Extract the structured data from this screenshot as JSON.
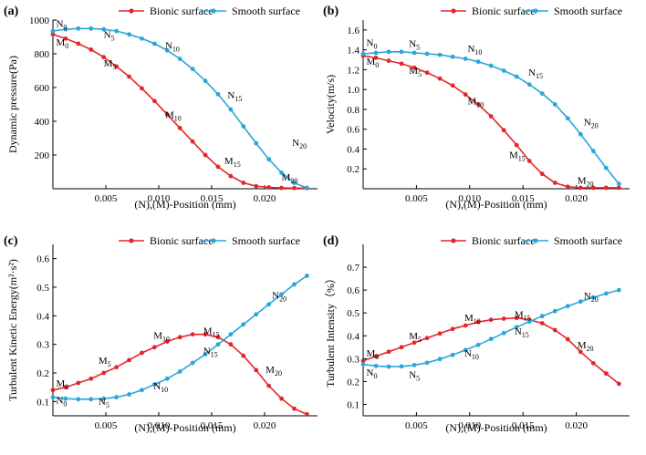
{
  "colors": {
    "bionic": "#e3262b",
    "smooth": "#2aa6d9",
    "axis": "#000000"
  },
  "chart_data": [
    {
      "type": "line",
      "panel": "(a)",
      "xlabel": "(N),(M)-Position (mm)",
      "ylabel": "Dynamic pressure(Pa)",
      "xlim": [
        0,
        0.025
      ],
      "ylim": [
        0,
        1000
      ],
      "xticks": [
        "0.005",
        "0.010",
        "0.015",
        "0.020"
      ],
      "xtick_values": [
        0.005,
        0.01,
        0.015,
        0.02
      ],
      "yticks": [
        "200",
        "400",
        "600",
        "800",
        "1000"
      ],
      "ytick_values": [
        200,
        400,
        600,
        800,
        1000
      ],
      "legend": "top",
      "series": [
        {
          "name": "Bionic surface",
          "color": "#e3262b",
          "x": [
            0,
            0.0012,
            0.0024,
            0.0036,
            0.0048,
            0.006,
            0.0072,
            0.0084,
            0.0096,
            0.0108,
            0.012,
            0.0132,
            0.0144,
            0.0156,
            0.0168,
            0.018,
            0.0192,
            0.0204,
            0.0216,
            0.0228,
            0.024
          ],
          "y": [
            915,
            890,
            860,
            825,
            780,
            725,
            665,
            595,
            520,
            440,
            360,
            280,
            200,
            130,
            75,
            35,
            15,
            8,
            5,
            4,
            4
          ]
        },
        {
          "name": "Smooth surface",
          "color": "#2aa6d9",
          "x": [
            0,
            0.0012,
            0.0024,
            0.0036,
            0.0048,
            0.006,
            0.0072,
            0.0084,
            0.0096,
            0.0108,
            0.012,
            0.0132,
            0.0144,
            0.0156,
            0.0168,
            0.018,
            0.0192,
            0.0204,
            0.0216,
            0.0228,
            0.024
          ],
          "y": [
            935,
            945,
            950,
            950,
            945,
            935,
            915,
            890,
            860,
            820,
            770,
            710,
            640,
            560,
            470,
            370,
            270,
            175,
            95,
            35,
            5
          ]
        }
      ],
      "point_labels": [
        {
          "base": "N",
          "sub": "0",
          "x": 0.0003,
          "y": 960
        },
        {
          "base": "M",
          "sub": "0",
          "x": 0.0003,
          "y": 850
        },
        {
          "base": "N",
          "sub": "5",
          "x": 0.0048,
          "y": 895
        },
        {
          "base": "M",
          "sub": "5",
          "x": 0.0048,
          "y": 725
        },
        {
          "base": "N",
          "sub": "10",
          "x": 0.0106,
          "y": 830
        },
        {
          "base": "M",
          "sub": "10",
          "x": 0.0106,
          "y": 420
        },
        {
          "base": "N",
          "sub": "15",
          "x": 0.0165,
          "y": 535
        },
        {
          "base": "M",
          "sub": "15",
          "x": 0.0162,
          "y": 145
        },
        {
          "base": "N",
          "sub": "20",
          "x": 0.0226,
          "y": 255
        },
        {
          "base": "M",
          "sub": "20",
          "x": 0.0216,
          "y": 50
        }
      ]
    },
    {
      "type": "line",
      "panel": "(b)",
      "xlabel": "(N),(M)-Position (mm)",
      "ylabel": "Velocity(m/s)",
      "xlim": [
        0,
        0.025
      ],
      "ylim": [
        0,
        1.7
      ],
      "xticks": [
        "0.005",
        "0.010",
        "0.015",
        "0.020"
      ],
      "xtick_values": [
        0.005,
        0.01,
        0.015,
        0.02
      ],
      "yticks": [
        "0.2",
        "0.4",
        "0.6",
        "0.8",
        "1.0",
        "1.2",
        "1.4",
        "1.6"
      ],
      "ytick_values": [
        0.2,
        0.4,
        0.6,
        0.8,
        1.0,
        1.2,
        1.4,
        1.6
      ],
      "legend": "top",
      "series": [
        {
          "name": "Bionic surface",
          "color": "#e3262b",
          "x": [
            0,
            0.0012,
            0.0024,
            0.0036,
            0.0048,
            0.006,
            0.0072,
            0.0084,
            0.0096,
            0.0108,
            0.012,
            0.0132,
            0.0144,
            0.0156,
            0.0168,
            0.018,
            0.0192,
            0.0204,
            0.0216,
            0.0228,
            0.024
          ],
          "y": [
            1.34,
            1.32,
            1.29,
            1.26,
            1.22,
            1.17,
            1.11,
            1.04,
            0.95,
            0.85,
            0.73,
            0.59,
            0.44,
            0.28,
            0.15,
            0.06,
            0.02,
            0.01,
            0.01,
            0.01,
            0.01
          ]
        },
        {
          "name": "Smooth surface",
          "color": "#2aa6d9",
          "x": [
            0,
            0.0012,
            0.0024,
            0.0036,
            0.0048,
            0.006,
            0.0072,
            0.0084,
            0.0096,
            0.0108,
            0.012,
            0.0132,
            0.0144,
            0.0156,
            0.0168,
            0.018,
            0.0192,
            0.0204,
            0.0216,
            0.0228,
            0.024
          ],
          "y": [
            1.36,
            1.37,
            1.38,
            1.38,
            1.37,
            1.36,
            1.35,
            1.33,
            1.31,
            1.28,
            1.24,
            1.19,
            1.13,
            1.05,
            0.96,
            0.85,
            0.71,
            0.55,
            0.38,
            0.21,
            0.05
          ]
        }
      ],
      "point_labels": [
        {
          "base": "N",
          "sub": "0",
          "x": 0.0003,
          "y": 1.44
        },
        {
          "base": "M",
          "sub": "0",
          "x": 0.0003,
          "y": 1.25
        },
        {
          "base": "N",
          "sub": "5",
          "x": 0.0043,
          "y": 1.43
        },
        {
          "base": "M",
          "sub": "5",
          "x": 0.0043,
          "y": 1.16
        },
        {
          "base": "N",
          "sub": "10",
          "x": 0.0098,
          "y": 1.38
        },
        {
          "base": "M",
          "sub": "10",
          "x": 0.0098,
          "y": 0.85
        },
        {
          "base": "N",
          "sub": "15",
          "x": 0.0155,
          "y": 1.14
        },
        {
          "base": "M",
          "sub": "15",
          "x": 0.0137,
          "y": 0.31
        },
        {
          "base": "N",
          "sub": "20",
          "x": 0.0207,
          "y": 0.64
        },
        {
          "base": "M",
          "sub": "20",
          "x": 0.0201,
          "y": 0.05
        }
      ]
    },
    {
      "type": "line",
      "panel": "(c)",
      "xlabel": "(N),(M)-Position (mm)",
      "ylabel": "Turbulent Kinetic Energy(m²·s²)",
      "xlim": [
        0,
        0.025
      ],
      "ylim": [
        0.05,
        0.65
      ],
      "xticks": [
        "0.005",
        "0.010",
        "0.015",
        "0.020"
      ],
      "xtick_values": [
        0.005,
        0.01,
        0.015,
        0.02
      ],
      "yticks": [
        "0.1",
        "0.2",
        "0.3",
        "0.4",
        "0.5",
        "0.6"
      ],
      "ytick_values": [
        0.1,
        0.2,
        0.3,
        0.4,
        0.5,
        0.6
      ],
      "legend": "top",
      "series": [
        {
          "name": "Bionic surface",
          "color": "#e3262b",
          "x": [
            0,
            0.0012,
            0.0024,
            0.0036,
            0.0048,
            0.006,
            0.0072,
            0.0084,
            0.0096,
            0.0108,
            0.012,
            0.0132,
            0.0144,
            0.0156,
            0.0168,
            0.018,
            0.0192,
            0.0204,
            0.0216,
            0.0228,
            0.024
          ],
          "y": [
            0.14,
            0.15,
            0.165,
            0.18,
            0.2,
            0.22,
            0.245,
            0.27,
            0.29,
            0.31,
            0.325,
            0.335,
            0.335,
            0.325,
            0.3,
            0.26,
            0.21,
            0.155,
            0.11,
            0.075,
            0.055
          ]
        },
        {
          "name": "Smooth surface",
          "color": "#2aa6d9",
          "x": [
            0,
            0.0012,
            0.0024,
            0.0036,
            0.0048,
            0.006,
            0.0072,
            0.0084,
            0.0096,
            0.0108,
            0.012,
            0.0132,
            0.0144,
            0.0156,
            0.0168,
            0.018,
            0.0192,
            0.0204,
            0.0216,
            0.0228,
            0.024
          ],
          "y": [
            0.115,
            0.11,
            0.108,
            0.108,
            0.11,
            0.115,
            0.125,
            0.14,
            0.16,
            0.18,
            0.205,
            0.235,
            0.265,
            0.3,
            0.335,
            0.37,
            0.405,
            0.44,
            0.475,
            0.51,
            0.54
          ]
        }
      ],
      "point_labels": [
        {
          "base": "M",
          "sub": "0",
          "x": 0.0003,
          "y": 0.152
        },
        {
          "base": "N",
          "sub": "0",
          "x": 0.0003,
          "y": 0.093
        },
        {
          "base": "M",
          "sub": "5",
          "x": 0.0043,
          "y": 0.232
        },
        {
          "base": "N",
          "sub": "5",
          "x": 0.0043,
          "y": 0.088
        },
        {
          "base": "M",
          "sub": "10",
          "x": 0.0095,
          "y": 0.32
        },
        {
          "base": "N",
          "sub": "10",
          "x": 0.0095,
          "y": 0.142
        },
        {
          "base": "M",
          "sub": "15",
          "x": 0.0142,
          "y": 0.335
        },
        {
          "base": "N",
          "sub": "15",
          "x": 0.0142,
          "y": 0.265
        },
        {
          "base": "N",
          "sub": "20",
          "x": 0.0207,
          "y": 0.46
        },
        {
          "base": "M",
          "sub": "20",
          "x": 0.0201,
          "y": 0.2
        }
      ]
    },
    {
      "type": "line",
      "panel": "(d)",
      "xlabel": "(N),(M)-Position (mm)",
      "ylabel": "Turbulent Intensity（%）",
      "xlim": [
        0,
        0.025
      ],
      "ylim": [
        0.05,
        0.8
      ],
      "xticks": [
        "0.005",
        "0.010",
        "0.015",
        "0.020"
      ],
      "xtick_values": [
        0.005,
        0.01,
        0.015,
        0.02
      ],
      "yticks": [
        "0.1",
        "0.2",
        "0.3",
        "0.4",
        "0.5",
        "0.6",
        "0.7"
      ],
      "ytick_values": [
        0.1,
        0.2,
        0.3,
        0.4,
        0.5,
        0.6,
        0.7
      ],
      "legend": "top",
      "series": [
        {
          "name": "Bionic surface",
          "color": "#e3262b",
          "x": [
            0,
            0.0012,
            0.0024,
            0.0036,
            0.0048,
            0.006,
            0.0072,
            0.0084,
            0.0096,
            0.0108,
            0.012,
            0.0132,
            0.0144,
            0.0156,
            0.0168,
            0.018,
            0.0192,
            0.0204,
            0.0216,
            0.0228,
            0.024
          ],
          "y": [
            0.29,
            0.31,
            0.33,
            0.35,
            0.37,
            0.39,
            0.41,
            0.43,
            0.445,
            0.46,
            0.47,
            0.475,
            0.478,
            0.47,
            0.455,
            0.425,
            0.385,
            0.33,
            0.28,
            0.235,
            0.19
          ]
        },
        {
          "name": "Smooth surface",
          "color": "#2aa6d9",
          "x": [
            0,
            0.0012,
            0.0024,
            0.0036,
            0.0048,
            0.006,
            0.0072,
            0.0084,
            0.0096,
            0.0108,
            0.012,
            0.0132,
            0.0144,
            0.0156,
            0.0168,
            0.018,
            0.0192,
            0.0204,
            0.0216,
            0.0228,
            0.024
          ],
          "y": [
            0.275,
            0.268,
            0.265,
            0.266,
            0.272,
            0.282,
            0.298,
            0.316,
            0.338,
            0.36,
            0.386,
            0.412,
            0.438,
            0.462,
            0.486,
            0.508,
            0.53,
            0.55,
            0.568,
            0.585,
            0.6
          ]
        }
      ],
      "point_labels": [
        {
          "base": "M",
          "sub": "0",
          "x": 0.0003,
          "y": 0.31
        },
        {
          "base": "N",
          "sub": "0",
          "x": 0.0003,
          "y": 0.225
        },
        {
          "base": "M",
          "sub": "5",
          "x": 0.0043,
          "y": 0.385
        },
        {
          "base": "N",
          "sub": "5",
          "x": 0.0043,
          "y": 0.215
        },
        {
          "base": "M",
          "sub": "10",
          "x": 0.0095,
          "y": 0.465
        },
        {
          "base": "N",
          "sub": "10",
          "x": 0.0095,
          "y": 0.31
        },
        {
          "base": "M",
          "sub": "15",
          "x": 0.0142,
          "y": 0.478
        },
        {
          "base": "N",
          "sub": "15",
          "x": 0.0142,
          "y": 0.405
        },
        {
          "base": "N",
          "sub": "20",
          "x": 0.0207,
          "y": 0.56
        },
        {
          "base": "M",
          "sub": "20",
          "x": 0.0201,
          "y": 0.345
        }
      ]
    }
  ]
}
